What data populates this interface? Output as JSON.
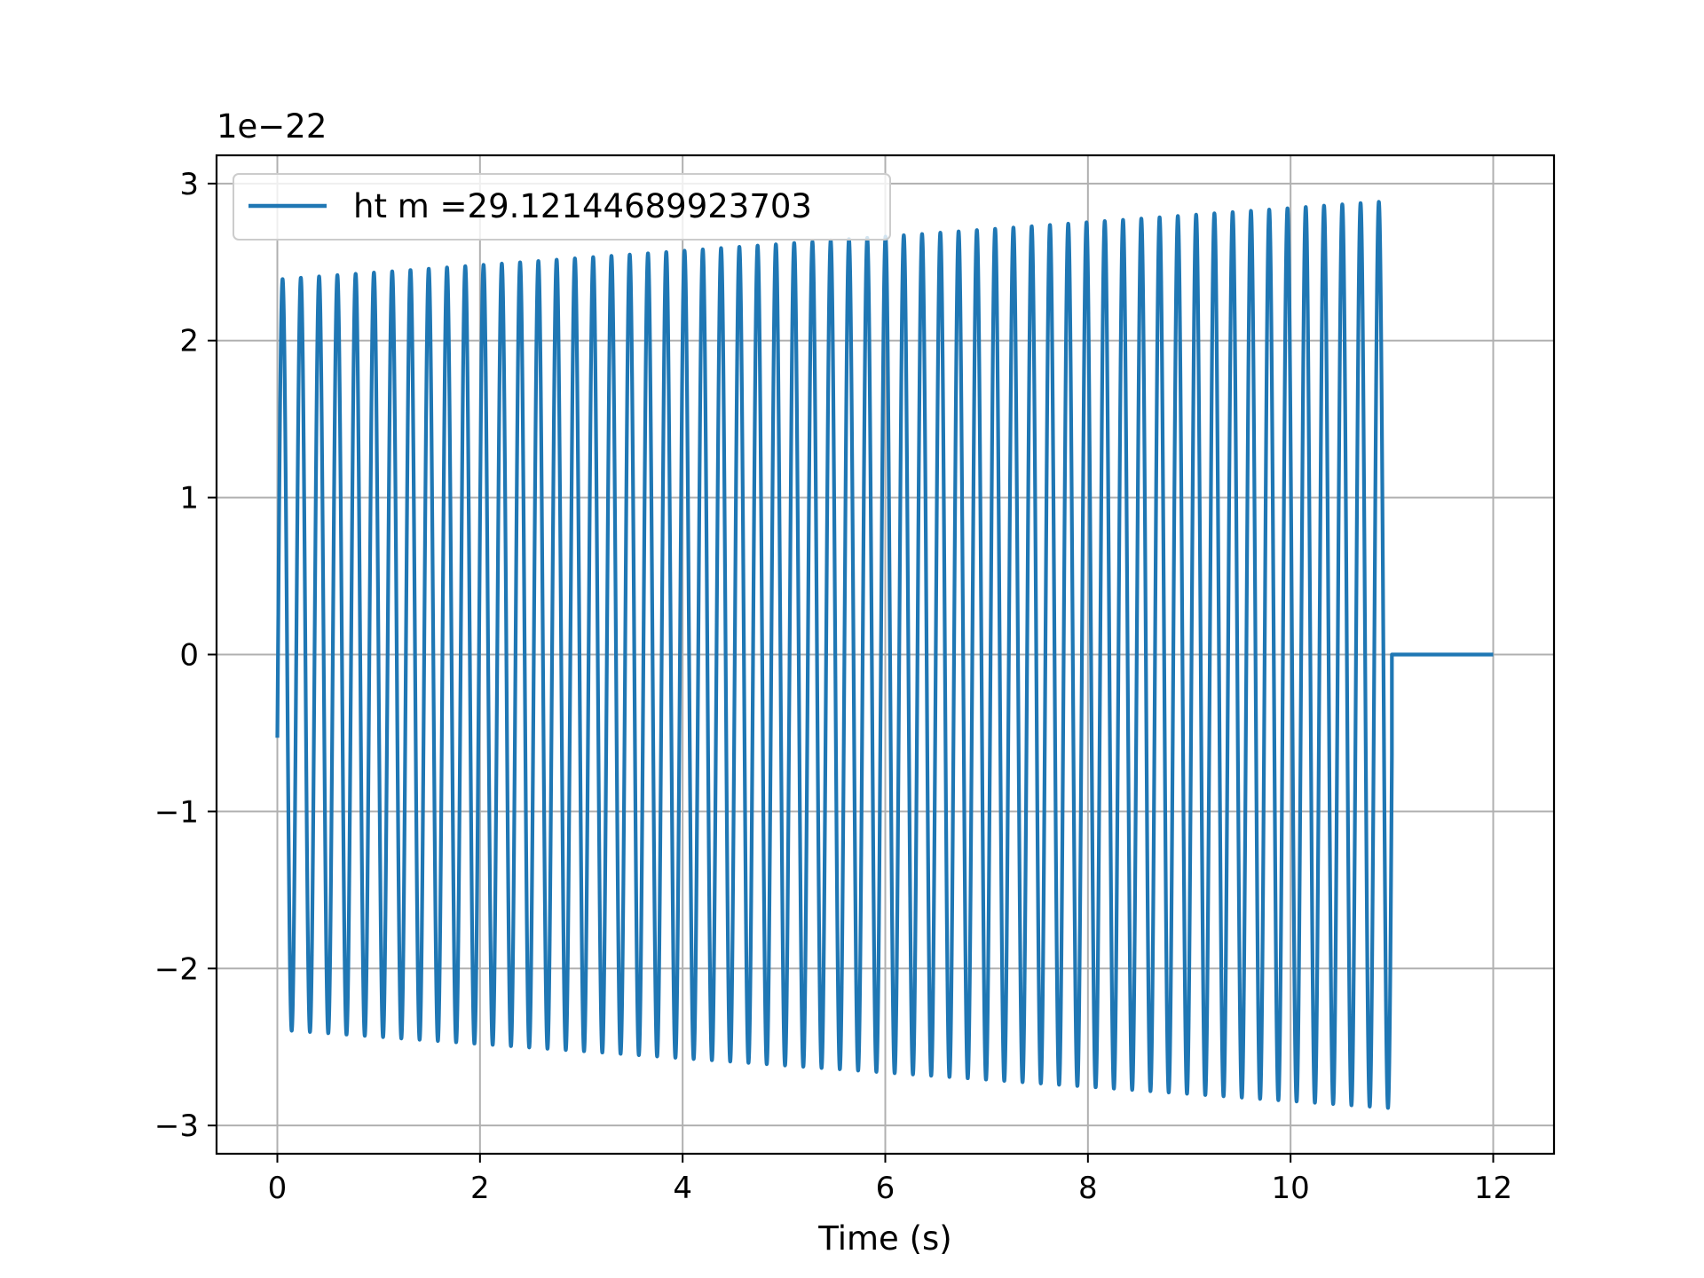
{
  "chart_data": {
    "type": "line",
    "title": "",
    "xlabel": "Time (s)",
    "ylabel": "",
    "y_offset_label": "1e−22",
    "xlim": [
      -0.6,
      12.6
    ],
    "ylim": [
      -3.18,
      3.18
    ],
    "x_ticks": [
      0,
      2,
      4,
      6,
      8,
      10,
      12
    ],
    "x_tick_labels": [
      "0",
      "2",
      "4",
      "6",
      "8",
      "10",
      "12"
    ],
    "y_ticks": [
      -3,
      -2,
      -1,
      0,
      1,
      2,
      3
    ],
    "y_tick_labels": [
      "−3",
      "−2",
      "−1",
      "0",
      "1",
      "2",
      "3"
    ],
    "grid": true,
    "legend_position": "top-left",
    "series": [
      {
        "name": "ht m =29.12144689923703",
        "color": "#1f77b4",
        "description_params": {
          "signal_start": 0.0,
          "signal_end": 11.0,
          "zero_until": 12.0,
          "start_value": -0.53,
          "cycles": 61,
          "amplitude_start": 2.39,
          "amplitude_end": 2.89
        }
      }
    ]
  }
}
